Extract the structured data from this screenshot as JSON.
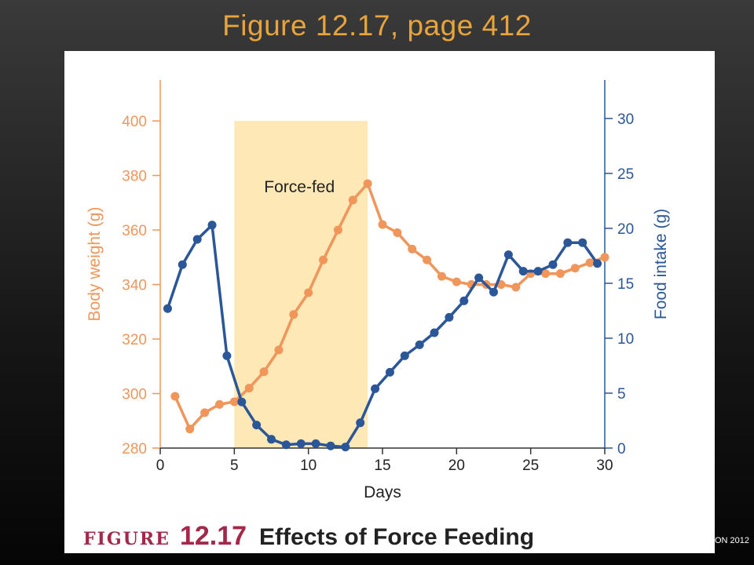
{
  "slide": {
    "title": "Figure 12.17, page 412",
    "copyright": "ON 2012"
  },
  "caption": {
    "figure_word": "FIGURE",
    "figure_number": "12.17",
    "text": "Effects of Force Feeding"
  },
  "colors": {
    "body_weight": "#f0965a",
    "food_intake": "#2b5697",
    "shade": "#fde8b6",
    "title": "#e8a33a",
    "caption_accent": "#a3284a"
  },
  "chart_data": {
    "type": "line",
    "xlabel": "Days",
    "xlim": [
      0,
      30
    ],
    "x_ticks": [
      0,
      5,
      10,
      15,
      20,
      25,
      30
    ],
    "annotations": [
      {
        "text": "Force-fed",
        "x_from": 5,
        "x_to": 14
      }
    ],
    "y_left": {
      "label": "Body weight (g)",
      "lim": [
        280,
        415
      ],
      "ticks": [
        280,
        300,
        320,
        340,
        360,
        380,
        400
      ]
    },
    "y_right": {
      "label": "Food intake (g)",
      "lim": [
        0,
        33.5
      ],
      "ticks": [
        0,
        5,
        10,
        15,
        20,
        25,
        30
      ]
    },
    "series": [
      {
        "name": "Body weight (g)",
        "axis": "left",
        "x": [
          1,
          2,
          3,
          4,
          5,
          6,
          7,
          8,
          9,
          10,
          11,
          12,
          13,
          14,
          15,
          16,
          17,
          18,
          19,
          20,
          21,
          22,
          23,
          24,
          25,
          26,
          27,
          28,
          29,
          30
        ],
        "values": [
          299,
          287,
          293,
          296,
          297,
          302,
          308,
          316,
          329,
          337,
          349,
          360,
          371,
          377,
          362,
          359,
          353,
          349,
          343,
          341,
          340,
          340,
          340,
          339,
          344,
          344,
          344,
          346,
          348,
          350
        ]
      },
      {
        "name": "Food intake (g)",
        "axis": "right",
        "x": [
          0.5,
          1.5,
          2.5,
          3.5,
          4.5,
          5.5,
          6.5,
          7.5,
          8.5,
          9.5,
          10.5,
          11.5,
          12.5,
          13.5,
          14.5,
          15.5,
          16.5,
          17.5,
          18.5,
          19.5,
          20.5,
          21.5,
          22.5,
          23.5,
          24.5,
          25.5,
          26.5,
          27.5,
          28.5,
          29.5
        ],
        "values": [
          12.7,
          16.7,
          19.0,
          20.3,
          8.4,
          4.2,
          2.1,
          0.8,
          0.3,
          0.4,
          0.4,
          0.2,
          0.1,
          2.3,
          5.4,
          6.9,
          8.4,
          9.4,
          10.5,
          11.9,
          13.4,
          15.5,
          14.2,
          17.6,
          16.1,
          16.1,
          16.7,
          18.7,
          18.7,
          16.8
        ]
      }
    ]
  }
}
